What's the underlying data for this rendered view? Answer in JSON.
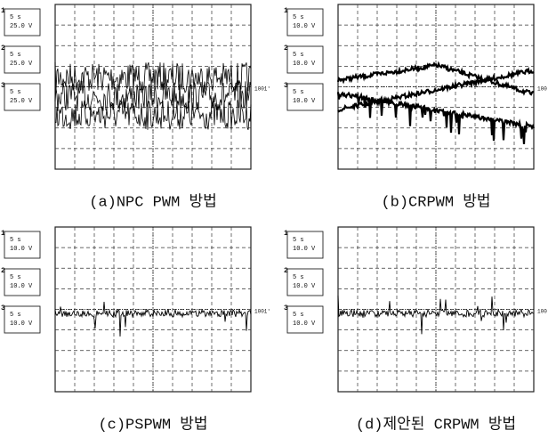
{
  "panels": [
    {
      "caption": "(a)NPC PWM 방법",
      "side_label": "1001'",
      "channels": [
        {
          "marker": "1",
          "time": "5 s",
          "volts": "25.0 V"
        },
        {
          "marker": "2",
          "time": "5 s",
          "volts": "25.0 V"
        },
        {
          "marker": "3",
          "time": "5 s",
          "volts": "25.0 V"
        }
      ]
    },
    {
      "caption": "(b)CRPWM 방법",
      "side_label": "100",
      "channels": [
        {
          "marker": "1",
          "time": "5 s",
          "volts": "10.0 V"
        },
        {
          "marker": "2",
          "time": "5 s",
          "volts": "10.0 V"
        },
        {
          "marker": "3",
          "time": "5 s",
          "volts": "10.0 V"
        }
      ]
    },
    {
      "caption": "(c)PSPWM 방법",
      "side_label": "1001'",
      "channels": [
        {
          "marker": "1",
          "time": "5 s",
          "volts": "10.0 V"
        },
        {
          "marker": "2",
          "time": "5 s",
          "volts": "10.0 V"
        },
        {
          "marker": "3",
          "time": "5 s",
          "volts": "10.0 V"
        }
      ]
    },
    {
      "caption": "(d)제안된 CRPWM 방법",
      "side_label": "100",
      "channels": [
        {
          "marker": "1",
          "time": "5 s",
          "volts": "10.0 V"
        },
        {
          "marker": "2",
          "time": "5 s",
          "volts": "10.0 V"
        },
        {
          "marker": "3",
          "time": "5 s",
          "volts": "10.0 V"
        }
      ]
    }
  ]
}
